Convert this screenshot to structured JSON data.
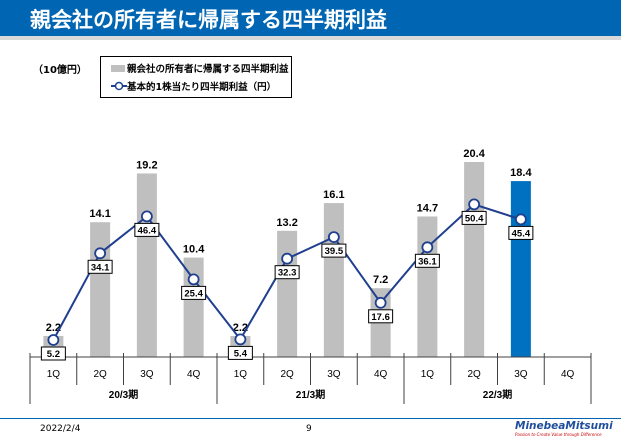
{
  "header": {
    "title": "親会社の所有者に帰属する四半期利益"
  },
  "footer": {
    "date": "2022/2/4",
    "page": "9",
    "logo": "MinebeaMitsumi",
    "tagline": "Passion to Create Value through Difference"
  },
  "chart_data": {
    "type": "bar+line",
    "unit_label": "（10億円）",
    "categories": [
      "1Q",
      "2Q",
      "3Q",
      "4Q",
      "1Q",
      "2Q",
      "3Q",
      "4Q",
      "1Q",
      "2Q",
      "3Q",
      "4Q"
    ],
    "groups": [
      "20/3期",
      "21/3期",
      "22/3期"
    ],
    "series": [
      {
        "name": "親会社の所有者に帰属する四半期利益",
        "type": "bar",
        "color": "#bfbfbf",
        "highlight_color": "#0070c0",
        "highlight_index": 10,
        "values": [
          2.2,
          14.1,
          19.2,
          10.4,
          2.2,
          13.2,
          16.1,
          7.2,
          14.7,
          20.4,
          18.4,
          null
        ]
      },
      {
        "name": "基本的1株当たり四半期利益（円）",
        "type": "line",
        "color": "#1f3f8f",
        "values": [
          5.2,
          34.1,
          46.4,
          25.4,
          5.4,
          32.3,
          39.5,
          17.6,
          36.1,
          50.4,
          45.4,
          null
        ]
      }
    ],
    "grid": false,
    "legend": "top-left"
  }
}
